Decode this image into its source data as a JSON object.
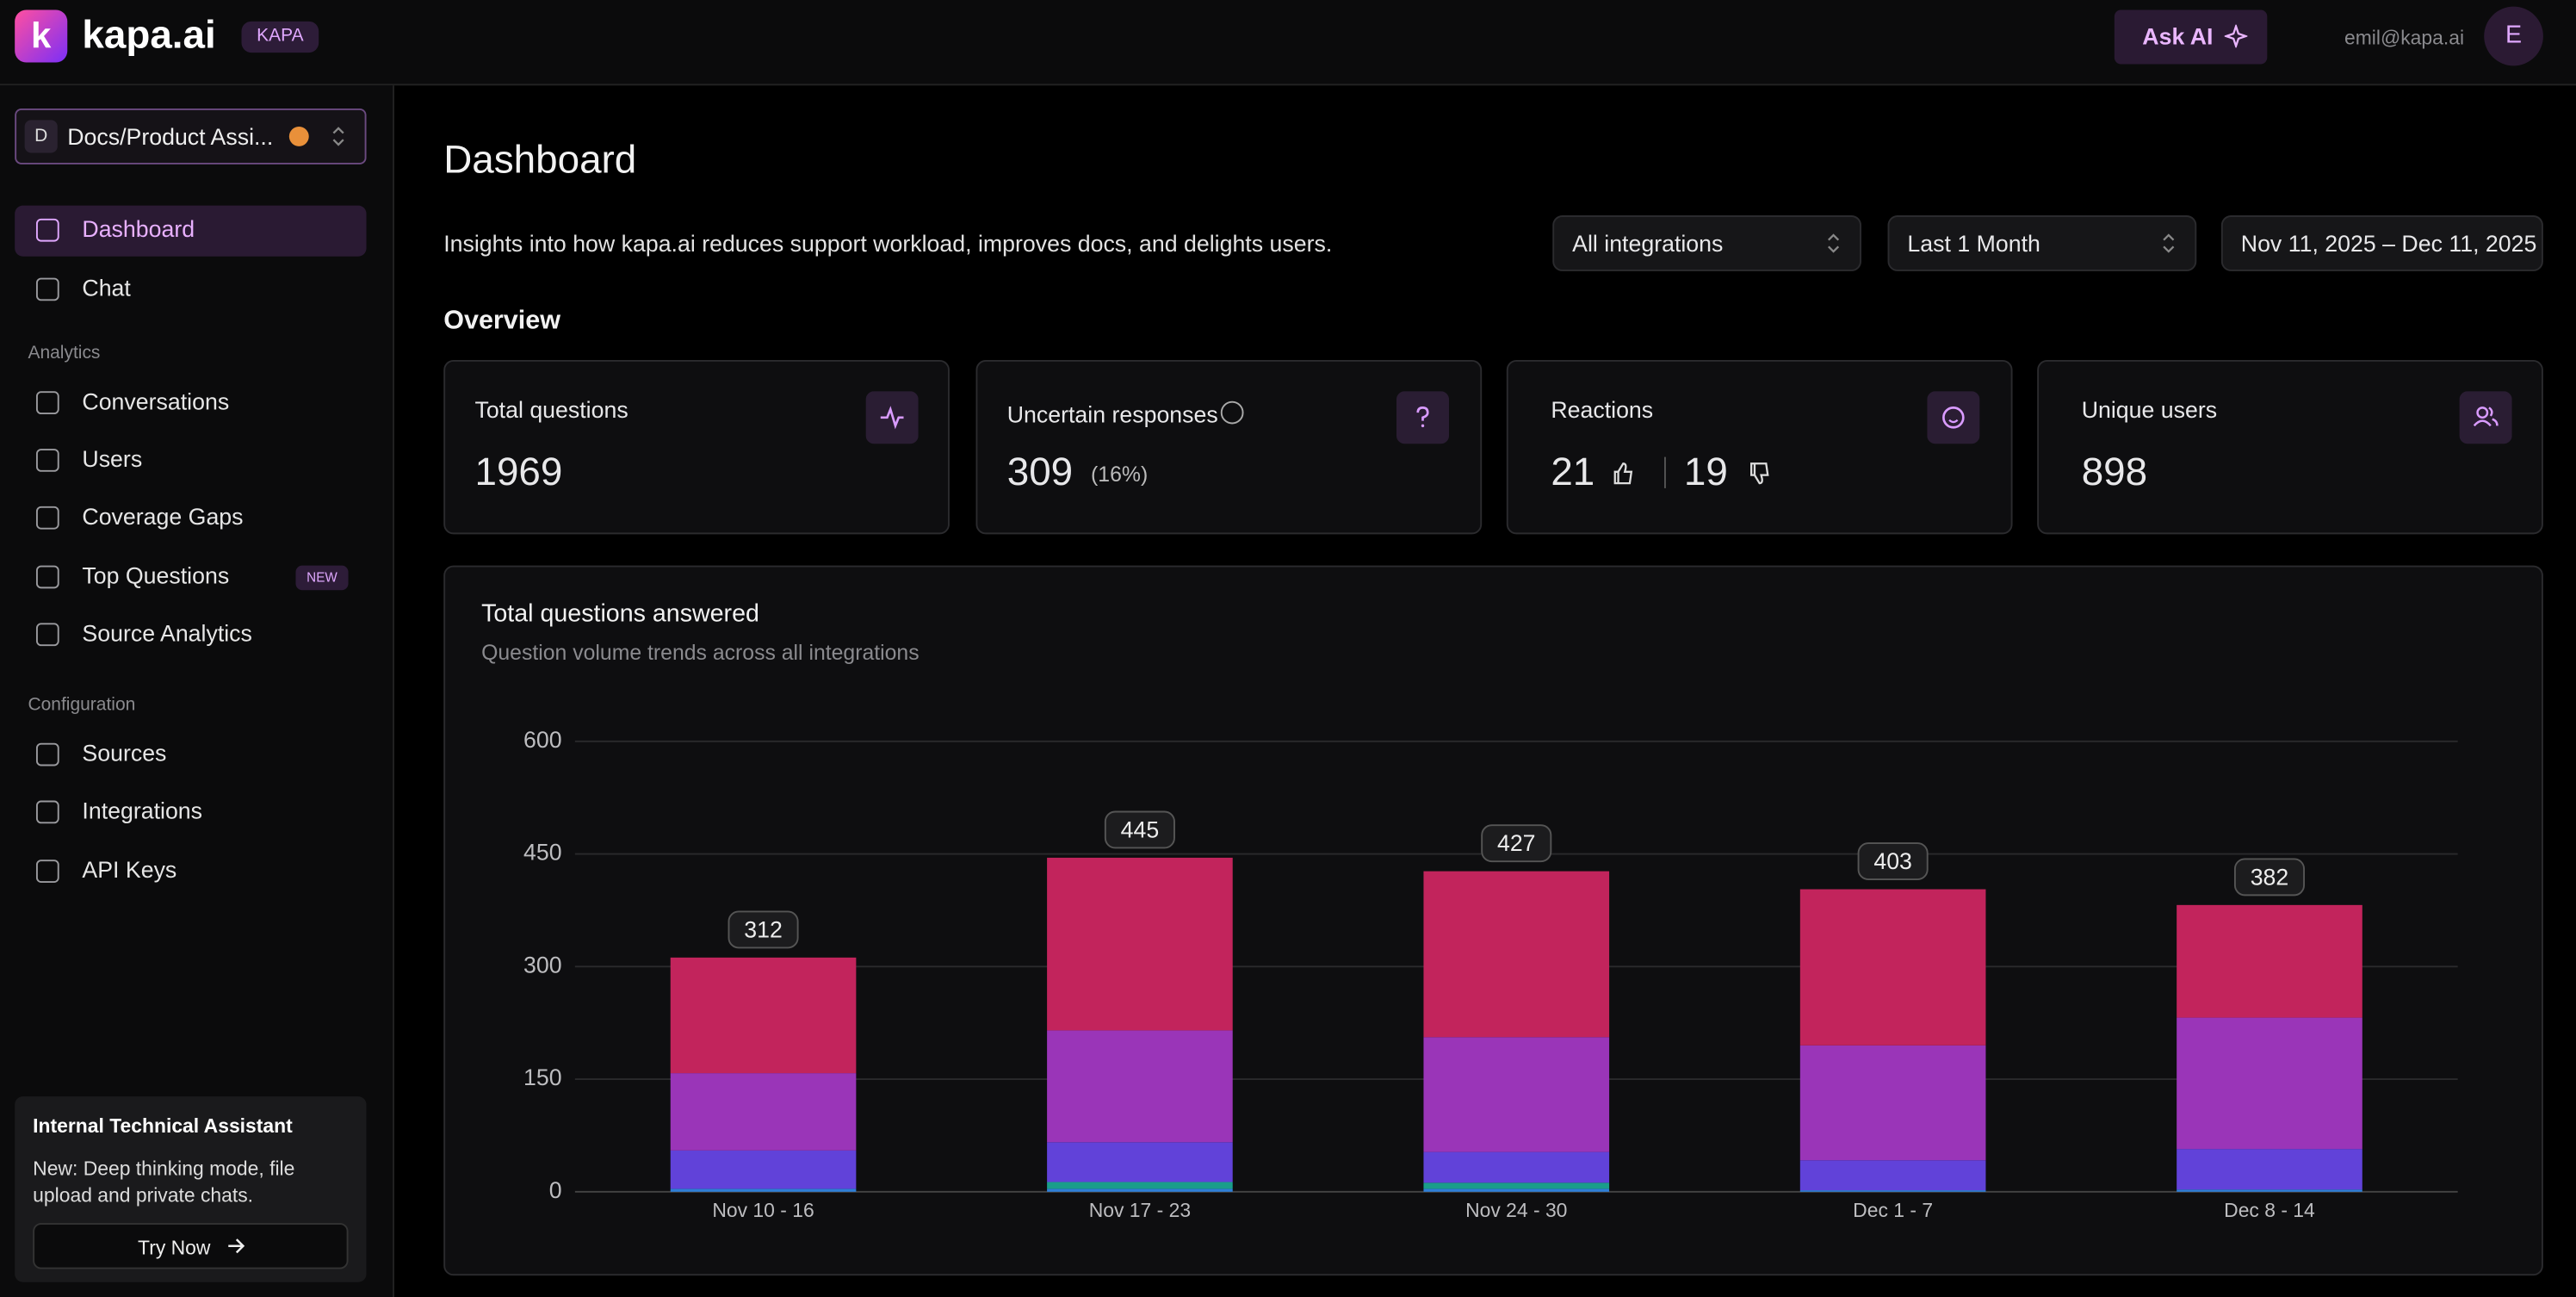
{
  "header": {
    "logo_letter": "k",
    "logo": "kapa.ai",
    "badge": "KAPA",
    "ask_ai": "Ask AI",
    "email": "emil@kapa.ai",
    "avatar": "E"
  },
  "sidebar": {
    "project_initial": "D",
    "project": "Docs/Product Assi...",
    "nav": [
      "Dashboard",
      "Chat"
    ],
    "analytics_heading": "Analytics",
    "analytics": [
      "Conversations",
      "Users",
      "Coverage Gaps",
      "Top Questions",
      "Source Analytics"
    ],
    "new_badge": "NEW",
    "config_heading": "Configuration",
    "config": [
      "Sources",
      "Integrations",
      "API Keys"
    ],
    "promo": {
      "title": "Internal Technical Assistant",
      "text": "New: Deep thinking mode, file upload and private chats.",
      "button": "Try Now"
    }
  },
  "page": {
    "title": "Dashboard",
    "description": "Insights into how kapa.ai reduces support workload, improves docs, and delights users.",
    "filters": [
      "All integrations",
      "Last 1 Month",
      "Nov 11, 2025 – Dec 11, 2025"
    ],
    "overview": "Overview"
  },
  "cards": [
    {
      "label": "Total questions",
      "value": 1969
    },
    {
      "label": "Uncertain responses",
      "value": 309,
      "note": "(16%)"
    },
    {
      "label": "Reactions",
      "up": 21,
      "down": 19
    },
    {
      "label": "Unique users",
      "value": 898
    }
  ],
  "chart_data": {
    "type": "bar",
    "stacked": true,
    "title": "Total questions answered",
    "subtitle": "Question volume trends across all integrations",
    "categories": [
      "Nov 10 - 16",
      "Nov 17 - 23",
      "Nov 24 - 30",
      "Dec 1 - 7",
      "Dec 8 - 14"
    ],
    "series": [
      {
        "color": "#2f7fd8",
        "values": [
          4,
          4,
          4,
          2,
          3
        ]
      },
      {
        "color": "#1a9d8a",
        "values": [
          0,
          9,
          8,
          0,
          0
        ]
      },
      {
        "color": "#6142d9",
        "values": [
          51,
          53,
          41,
          40,
          54
        ]
      },
      {
        "color": "#9a35b8",
        "values": [
          103,
          149,
          153,
          153,
          175
        ]
      },
      {
        "color": "#c2245c",
        "values": [
          154,
          230,
          221,
          208,
          150
        ]
      }
    ],
    "totals": [
      312,
      445,
      427,
      403,
      382
    ],
    "ylim": [
      0,
      600
    ],
    "yticks": [
      0,
      150,
      300,
      450,
      600
    ],
    "grid": true
  }
}
